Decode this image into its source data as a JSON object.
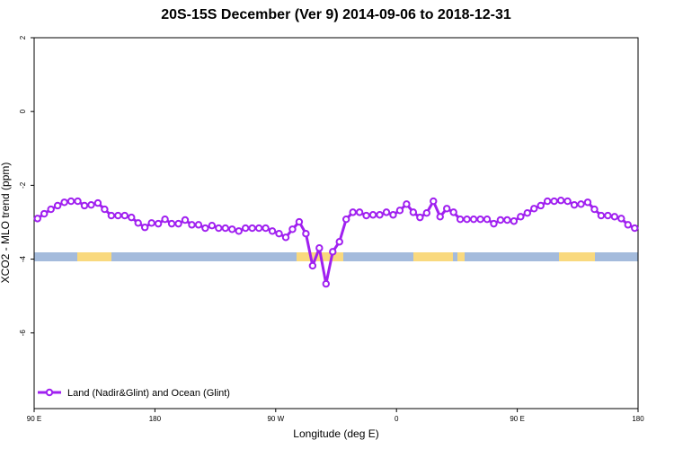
{
  "chart_data": {
    "type": "line",
    "title": "20S-15S December (Ver 9)   2014-09-06 to 2018-12-31",
    "x_label": "Longitude (deg E)",
    "y_label": "XCO2 - MLO trend (ppm)",
    "xlim": [
      90,
      540
    ],
    "ylim": [
      -8.05,
      2
    ],
    "xticks": [
      {
        "value": 90,
        "label": "90 E"
      },
      180,
      {
        "value": 270,
        "label": "90 W"
      },
      {
        "value": 360,
        "label": "0"
      },
      {
        "value": 450,
        "label": "90 E"
      },
      {
        "value": 540,
        "label": "180"
      }
    ],
    "yticks": [
      2,
      0,
      -2,
      -4,
      -6
    ],
    "legend_position": "bottom-left",
    "x": [
      92.5,
      97.5,
      102.5,
      107.5,
      112.5,
      117.5,
      122.5,
      127.5,
      132.5,
      137.5,
      142.5,
      147.5,
      152.5,
      157.5,
      162.5,
      167.5,
      172.5,
      177.5,
      182.5,
      187.5,
      192.5,
      197.5,
      202.5,
      207.5,
      212.5,
      217.5,
      222.5,
      227.5,
      232.5,
      237.5,
      242.5,
      247.5,
      252.5,
      257.5,
      262.5,
      267.5,
      272.5,
      277.5,
      282.5,
      287.5,
      292.5,
      297.5,
      302.5,
      307.5,
      312.5,
      317.5,
      322.5,
      327.5,
      332.5,
      337.5,
      342.5,
      347.5,
      352.5,
      357.5,
      362.5,
      367.5,
      372.5,
      377.5,
      382.5,
      387.5,
      392.5,
      397.5,
      402.5,
      407.5,
      412.5,
      417.5,
      422.5,
      427.5,
      432.5,
      437.5,
      442.5,
      447.5,
      452.5,
      457.5,
      462.5,
      467.5,
      472.5,
      477.5,
      482.5,
      487.5,
      492.5,
      497.5,
      502.5,
      507.5,
      512.5,
      517.5,
      522.5,
      527.5,
      532.5,
      537.5
    ],
    "series": [
      {
        "name": "Land (Nadir&Glint) and Ocean (Glint)",
        "color": "#a020f0",
        "values": [
          -2.9,
          -2.77,
          -2.65,
          -2.55,
          -2.46,
          -2.43,
          -2.43,
          -2.55,
          -2.53,
          -2.48,
          -2.65,
          -2.82,
          -2.82,
          -2.82,
          -2.87,
          -3.02,
          -3.14,
          -3.02,
          -3.04,
          -2.92,
          -3.04,
          -3.04,
          -2.94,
          -3.07,
          -3.07,
          -3.16,
          -3.09,
          -3.16,
          -3.16,
          -3.19,
          -3.24,
          -3.16,
          -3.16,
          -3.16,
          -3.16,
          -3.24,
          -3.31,
          -3.41,
          -3.19,
          -2.99,
          -3.31,
          -4.18,
          -3.7,
          -4.67,
          -3.8,
          -3.53,
          -2.92,
          -2.73,
          -2.73,
          -2.82,
          -2.8,
          -2.8,
          -2.73,
          -2.8,
          -2.68,
          -2.51,
          -2.73,
          -2.87,
          -2.75,
          -2.43,
          -2.85,
          -2.63,
          -2.73,
          -2.92,
          -2.92,
          -2.92,
          -2.92,
          -2.92,
          -3.04,
          -2.94,
          -2.94,
          -2.97,
          -2.85,
          -2.75,
          -2.63,
          -2.55,
          -2.43,
          -2.43,
          -2.41,
          -2.43,
          -2.53,
          -2.51,
          -2.46,
          -2.65,
          -2.82,
          -2.82,
          -2.85,
          -2.9,
          -3.07,
          -3.16
        ]
      }
    ]
  }
}
